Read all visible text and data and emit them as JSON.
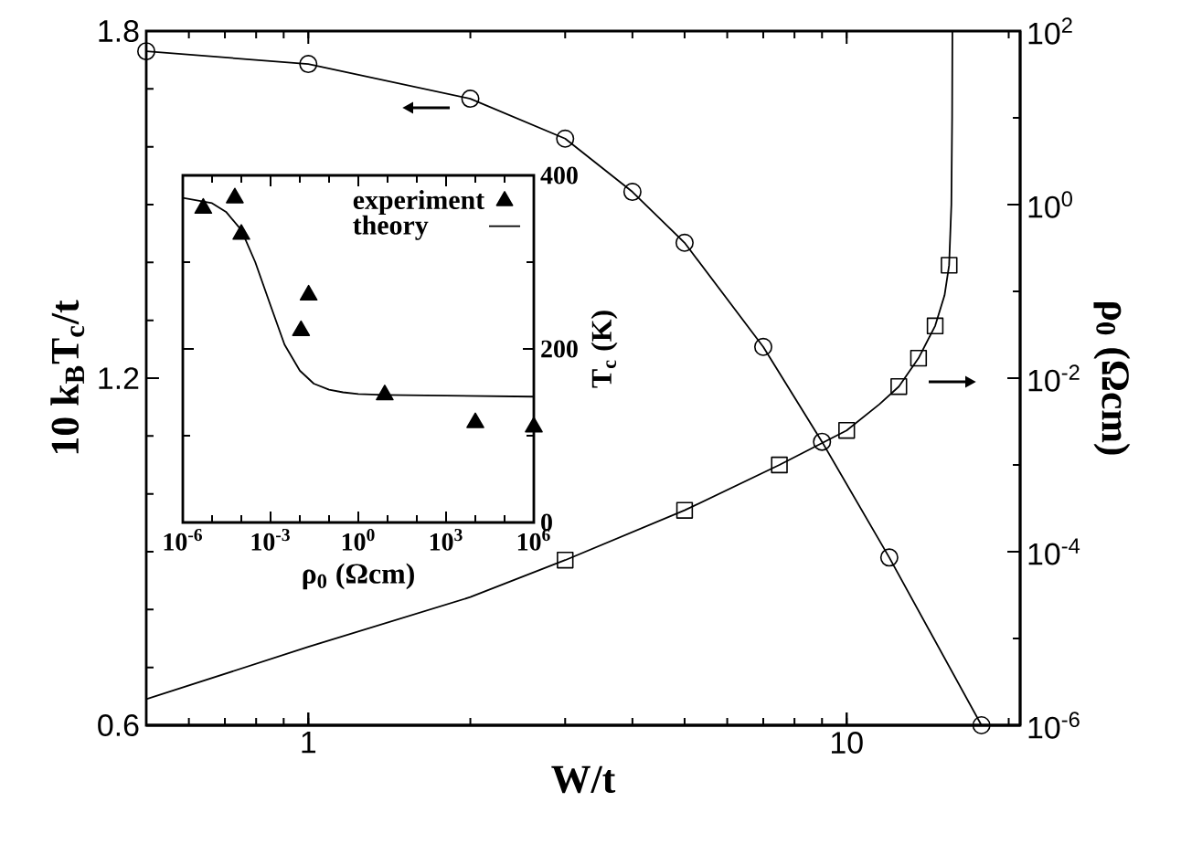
{
  "chart_data": [
    {
      "type": "line",
      "xlabel": "W/t",
      "ylabel": "10 k$_{B}$T$_{c}$/t",
      "log": "x",
      "xlim": [
        0.5,
        21
      ],
      "ylim": [
        0.6,
        1.8
      ],
      "xticks": [
        1,
        10
      ],
      "yticks": [
        0.6,
        1.2,
        1.8
      ],
      "series": [
        {
          "marker": "circle",
          "color": "#000000",
          "x": [
            0.5,
            1,
            2,
            3,
            4,
            5,
            7,
            9,
            12,
            17.8
          ],
          "values": [
            1.765,
            1.743,
            1.683,
            1.614,
            1.522,
            1.434,
            1.254,
            1.09,
            0.89,
            0.6
          ]
        }
      ]
    },
    {
      "type": "scatter",
      "ylabel": "ρ$_{0}$ (Ωcm)",
      "log": "xy",
      "tick_labels": "y",
      "xlim": [
        0.5,
        21
      ],
      "ylim": [
        1e-06,
        100
      ],
      "xticks": [
        {
          "value": 1,
          "label": null
        },
        {
          "value": 10,
          "label": null
        }
      ],
      "yticks": [
        {
          "value": 1e-06,
          "label": "10$^{-6}$"
        },
        {
          "value": 0.0001,
          "label": "10$^{-4}$"
        },
        {
          "value": 0.01,
          "label": "10$^{-2}$"
        },
        {
          "value": 1,
          "label": "10$^{0}$"
        },
        {
          "value": 100,
          "label": "10$^{2}$"
        }
      ],
      "series": [
        {
          "marker": "square",
          "color": "#000000",
          "x": [
            3,
            5,
            7.5,
            10,
            12.5,
            13.6,
            14.6,
            15.5
          ],
          "values": [
            8e-05,
            0.0003,
            0.001,
            0.0025,
            0.008,
            0.017,
            0.04,
            0.2
          ]
        },
        {
          "type": "line",
          "marker": "none",
          "color": "#000000",
          "x": [
            0.5,
            1,
            2,
            3,
            5,
            7.5,
            10,
            11.5,
            12.5,
            13.6,
            14.6,
            15.2,
            15.5,
            15.65,
            15.7,
            15.72
          ],
          "values": [
            2e-06,
            8e-06,
            3e-05,
            8e-05,
            0.0003,
            0.001,
            0.0025,
            0.005,
            0.008,
            0.017,
            0.04,
            0.09,
            0.2,
            1,
            10,
            100
          ]
        }
      ]
    },
    {
      "type": "scatter",
      "xlabel": "ρ$_{0}$ (Ωcm)",
      "ylabel": "T$_{c}$ (K)",
      "log": "x",
      "legend": "top right",
      "xlim": [
        1e-06,
        1000000.0
      ],
      "ylim": [
        0,
        400
      ],
      "xticks": [
        {
          "value": 1e-06,
          "label": "10$^{-6}$"
        },
        {
          "value": 0.001,
          "label": "10$^{-3}$"
        },
        {
          "value": 1,
          "label": "10$^{0}$"
        },
        {
          "value": 1000,
          "label": "10$^{3}$"
        },
        {
          "value": 1000000.0,
          "label": "10$^{6}$"
        }
      ],
      "yticks": [
        0,
        200,
        400
      ],
      "series": [
        {
          "name": "experiment",
          "marker": "triangle",
          "color": "#000000",
          "x": [
            5e-06,
            6e-05,
            0.0001,
            0.02,
            0.011,
            8,
            10000.0,
            1000000.0
          ],
          "values": [
            362,
            374,
            332,
            262,
            221,
            147,
            115,
            110
          ]
        },
        {
          "name": "theory",
          "type": "line",
          "marker": "none",
          "color": "#000000",
          "x": [
            1e-06,
            1e-05,
            3e-05,
            0.0001,
            0.0003,
            0.001,
            0.003,
            0.01,
            0.03,
            0.1,
            0.3,
            1,
            8,
            1000000.0
          ],
          "values": [
            374,
            368,
            358,
            337,
            300,
            250,
            205,
            175,
            160,
            153,
            150,
            148,
            147,
            145
          ]
        }
      ]
    }
  ]
}
